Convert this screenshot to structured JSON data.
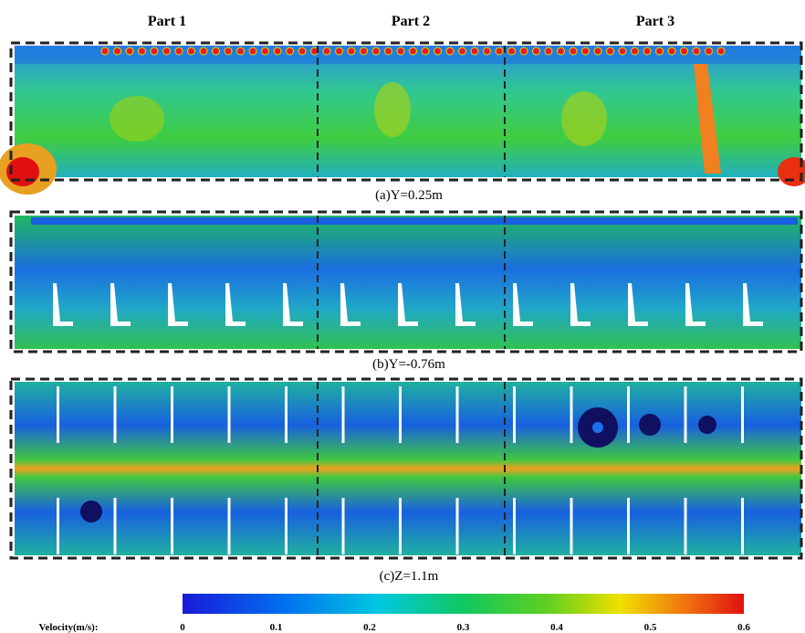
{
  "parts": [
    "Part 1",
    "Part 2",
    "Part 3"
  ],
  "panels": [
    {
      "caption": "(a)Y=0.25m"
    },
    {
      "caption": "(b)Y=-0.76m"
    },
    {
      "caption": "(c)Z=1.1m"
    }
  ],
  "colorbar": {
    "label": "Velocity(m/s):",
    "lim": [
      0,
      0.6
    ],
    "ticks": [
      0,
      0.1,
      0.2,
      0.3,
      0.4,
      0.5,
      0.6
    ]
  }
}
